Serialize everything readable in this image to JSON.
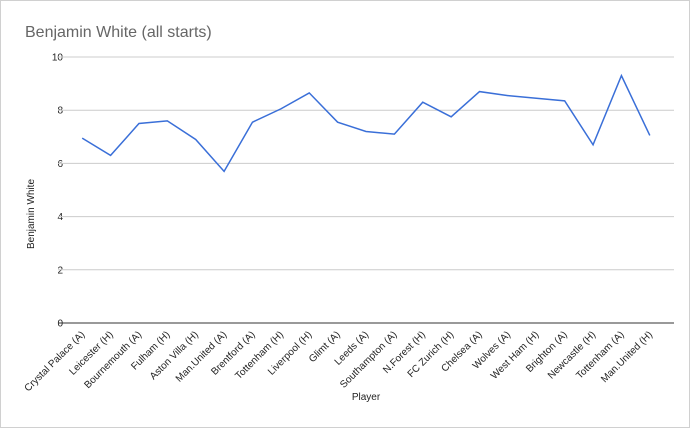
{
  "chart_data": {
    "type": "line",
    "title": "Benjamin White (all starts)",
    "x_label": "Player",
    "y_label": "Benjamin White",
    "categories": [
      "Crystal Palace (A)",
      "Leicester (H)",
      "Bournemouth (A)",
      "Fulham (H)",
      "Aston Villa (H)",
      "Man.United (A)",
      "Brentford (A)",
      "Tottenham (H)",
      "Liverpool (H)",
      "Glimt (A)",
      "Leeds (A)",
      "Southampton (A)",
      "N.Forest (H)",
      "FC Zurich (H)",
      "Chelsea (A)",
      "Wolves (A)",
      "West Ham (H)",
      "Brighton (A)",
      "Newcastle (H)",
      "Tottenham (A)",
      "Man.United (H)"
    ],
    "series": [
      {
        "name": "Benjamin White",
        "color": "#3a6fd8",
        "values": [
          6.95,
          6.3,
          7.5,
          7.6,
          6.9,
          5.7,
          7.55,
          8.05,
          8.65,
          7.55,
          7.2,
          7.1,
          8.3,
          7.75,
          8.7,
          8.55,
          8.45,
          8.35,
          6.7,
          9.3,
          7.05
        ]
      }
    ],
    "ylim": [
      0,
      10
    ],
    "yticks": [
      0,
      2,
      4,
      6,
      8,
      10
    ],
    "grid": true
  }
}
